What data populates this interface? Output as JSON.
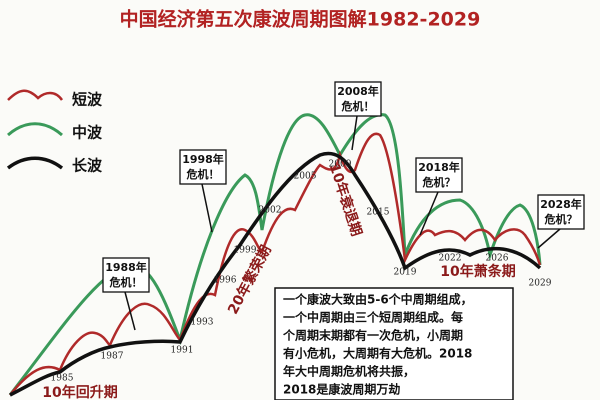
{
  "title": "中国经济第五次康波周期图解1982-2029",
  "legend": [
    "短波",
    "中波",
    "长波"
  ],
  "callouts": [
    [
      "1988年",
      "危机！"
    ],
    [
      "1998年",
      "危机！"
    ],
    [
      "2008年",
      "危机！"
    ],
    [
      "2018年",
      "危机？"
    ],
    [
      "2028年",
      "危机？"
    ]
  ],
  "years": [
    "1985",
    "1987",
    "1991",
    "1993",
    "1996",
    "1999",
    "2002",
    "2005",
    "2009",
    "2015",
    "2019",
    "2022",
    "2026",
    "2029"
  ],
  "phases": [
    "10年回升期",
    "20年繁荣期",
    "10年衰退期",
    "10年萧条期"
  ],
  "note": [
    "一个康波大致由5-6个中周期组成，",
    "一个中周期由三个短周期组成。每",
    "个周期末期都有一次危机，小周期",
    "有小危机，大周期有大危机。2018",
    "年大中周期危机将共振，",
    "2018是康波周期万劫"
  ]
}
